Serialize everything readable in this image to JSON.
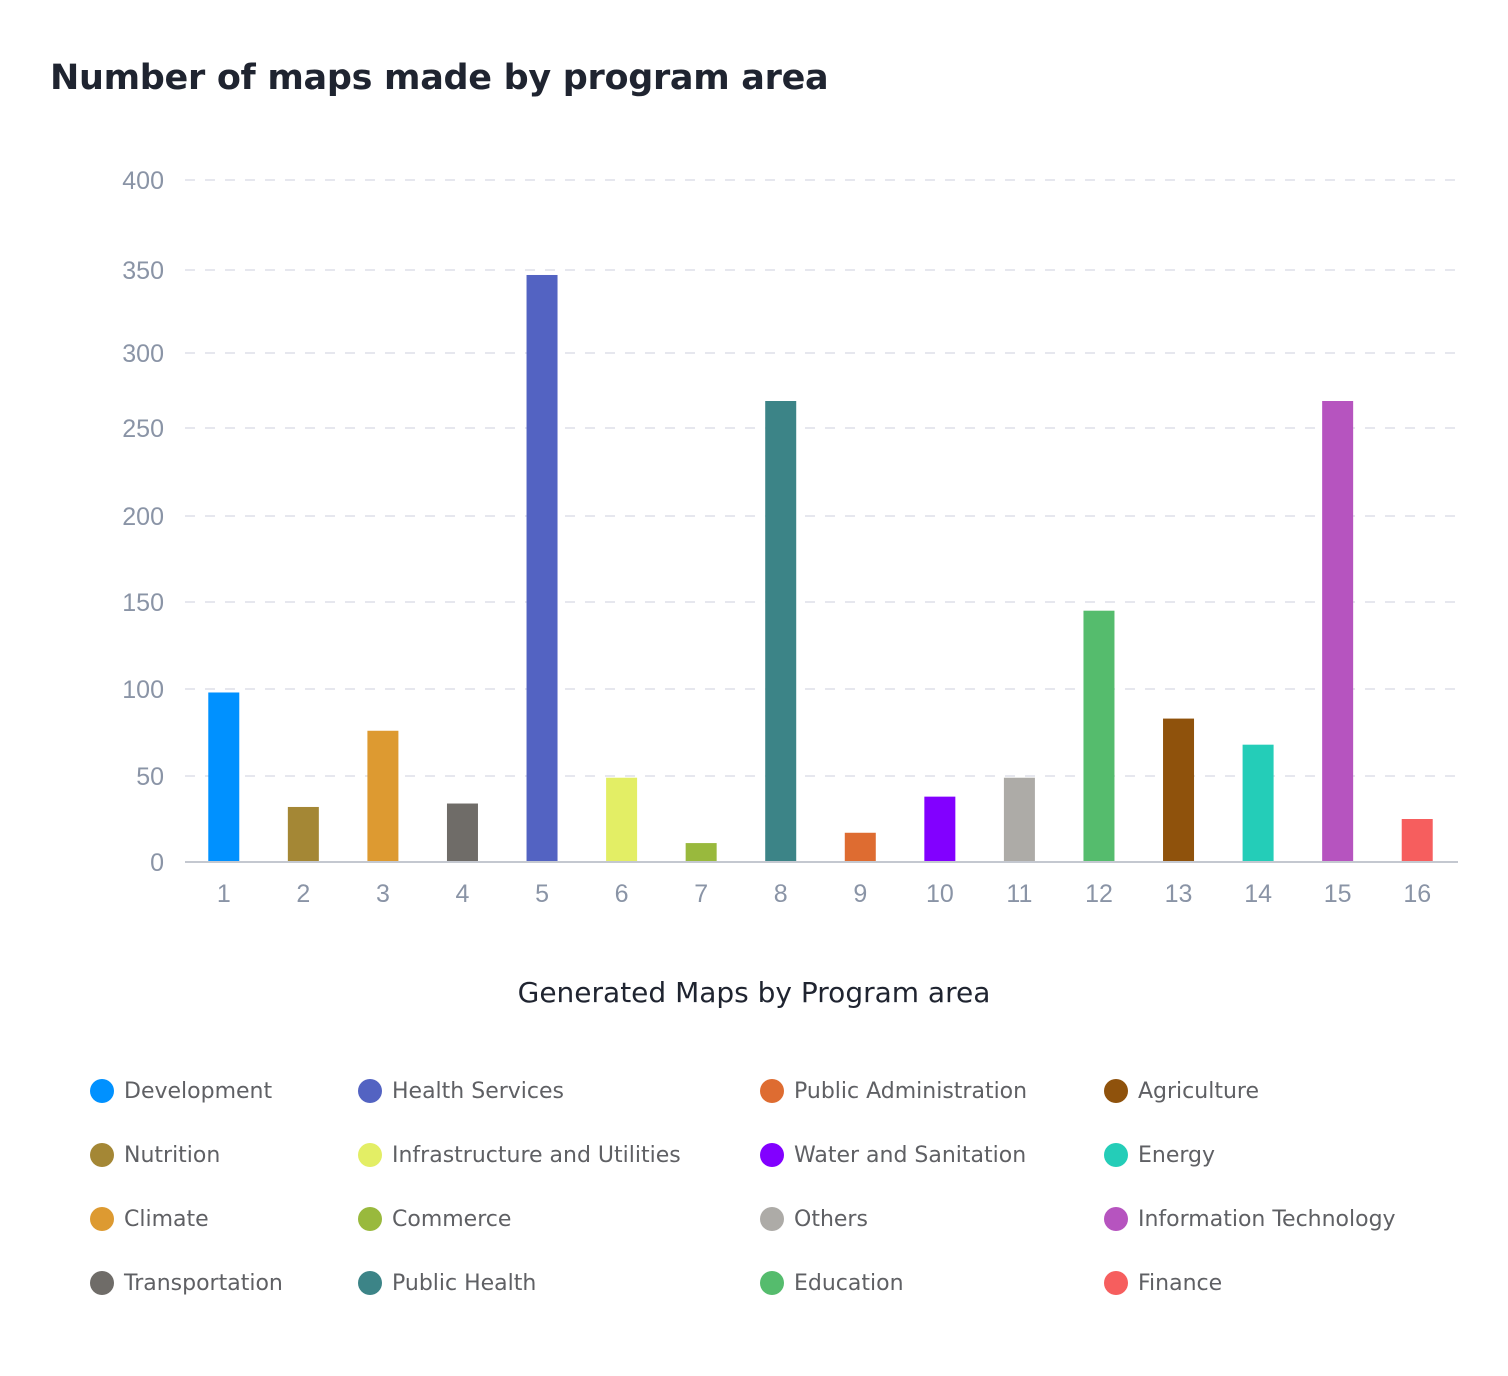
{
  "title": "Number of maps made by program area",
  "subtitle": "Generated Maps by Program area",
  "chart_data": {
    "type": "bar",
    "title": "Number of maps made by program area",
    "xlabel": "Generated Maps by Program area",
    "ylabel": "",
    "categories": [
      "1",
      "2",
      "3",
      "4",
      "5",
      "6",
      "7",
      "8",
      "9",
      "10",
      "11",
      "12",
      "13",
      "14",
      "15",
      "16"
    ],
    "series": [
      {
        "name": "Generated Maps by Program area",
        "values": [
          98,
          32,
          76,
          34,
          347,
          49,
          11,
          268,
          17,
          38,
          49,
          145,
          83,
          68,
          268,
          25
        ]
      }
    ],
    "colors": [
      "#0091ff",
      "#a48735",
      "#dd9a31",
      "#6f6c68",
      "#5363c2",
      "#e3ee65",
      "#99b93d",
      "#3c8487",
      "#de6c31",
      "#8200ff",
      "#adaba7",
      "#55bc6d",
      "#8f520c",
      "#24cdb8",
      "#b654bf",
      "#f65e5e"
    ],
    "y_ticks": [
      0,
      50,
      100,
      150,
      200,
      250,
      300,
      350,
      400
    ],
    "ylim": [
      0,
      400
    ],
    "grid": true,
    "legend": {
      "position": "bottom",
      "entries": [
        "Development",
        "Nutrition",
        "Climate",
        "Transportation",
        "Health Services",
        "Infrastructure and Utilities",
        "Commerce",
        "Public Health",
        "Public Administration",
        "Water and Sanitation",
        "Others",
        "Education",
        "Agriculture",
        "Energy",
        "Information Technology",
        "Finance"
      ]
    }
  }
}
